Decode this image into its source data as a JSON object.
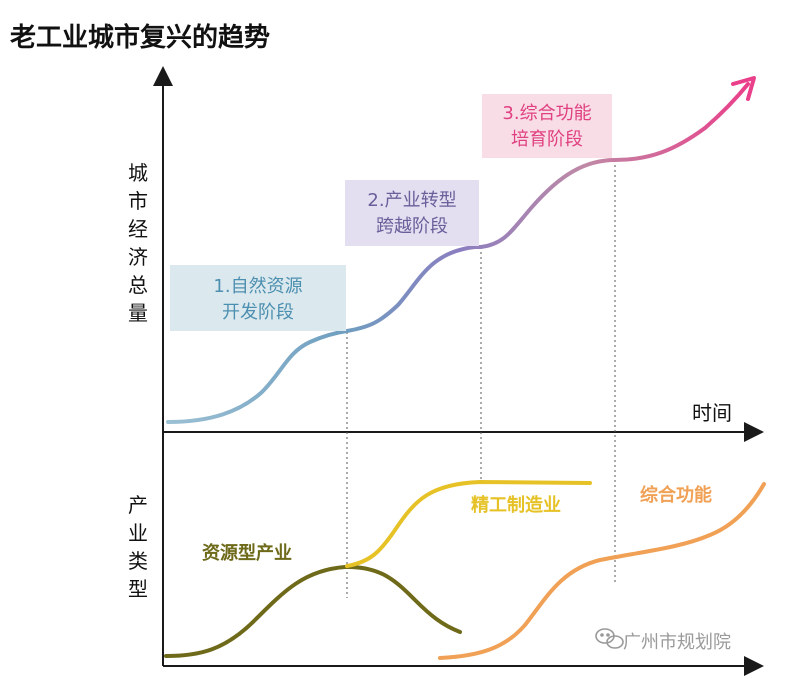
{
  "title": "老工业城市复兴的趋势",
  "upper": {
    "y_axis_label": [
      "城",
      "市",
      "经",
      "济",
      "总",
      "量"
    ],
    "x_axis_label": "时间",
    "stages": [
      {
        "lines": [
          "1.自然资源",
          "开发阶段"
        ],
        "color": "#4d8fb0",
        "bg": "#dbe9ee"
      },
      {
        "lines": [
          "2.产业转型",
          "跨越阶段"
        ],
        "color": "#6a5f9a",
        "bg": "#e3def0"
      },
      {
        "lines": [
          "3.综合功能",
          "培育阶段"
        ],
        "color": "#e0407f",
        "bg": "#f8dde7"
      }
    ]
  },
  "lower": {
    "y_axis_label": [
      "产",
      "业",
      "类",
      "型"
    ],
    "industries": [
      {
        "label": "资源型产业",
        "color": "#6e6a1a"
      },
      {
        "label": "精工制造业",
        "color": "#e6c227"
      },
      {
        "label": "综合功能",
        "color": "#f0a155"
      }
    ]
  },
  "watermark": "广州市规划院",
  "colors": {
    "axis": "#1a1a1a",
    "curve_start": "#8ab4cc",
    "curve_mid": "#8f7bbf",
    "curve_end": "#e2468a",
    "dashed": "#555555"
  }
}
